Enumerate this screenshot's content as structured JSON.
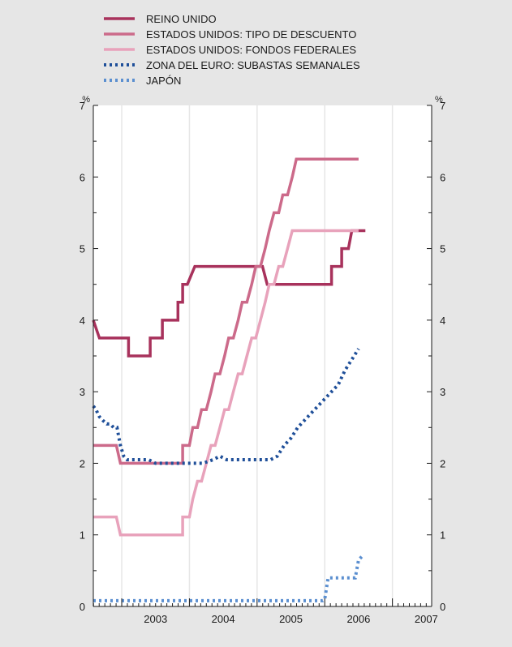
{
  "chart_data": {
    "type": "line",
    "title": "",
    "xlabel": "",
    "ylabel": "",
    "unit_left": "%",
    "unit_right": "%",
    "ylim": [
      0,
      7
    ],
    "xlim": [
      2002.58,
      2007.58
    ],
    "x_tick_labels": [
      "2003",
      "2004",
      "2005",
      "2006",
      "2007"
    ],
    "x_tick_positions": [
      2003,
      2004,
      2005,
      2006,
      2007
    ],
    "y_ticks": [
      "0",
      "1",
      "2",
      "3",
      "4",
      "5",
      "6",
      "7"
    ],
    "grid": "vertical lines at year boundaries",
    "legend_position": "top-left, above plot",
    "series": [
      {
        "name": "REINO UNIDO",
        "color": "#a8325c",
        "style": "solid",
        "points": [
          [
            2002.58,
            4.0
          ],
          [
            2002.67,
            3.75
          ],
          [
            2002.98,
            3.75
          ],
          [
            2003.1,
            3.75
          ],
          [
            2003.1,
            3.5
          ],
          [
            2003.33,
            3.5
          ],
          [
            2003.42,
            3.5
          ],
          [
            2003.42,
            3.75
          ],
          [
            2003.5,
            3.75
          ],
          [
            2003.6,
            3.75
          ],
          [
            2003.6,
            4.0
          ],
          [
            2003.83,
            4.0
          ],
          [
            2003.83,
            4.25
          ],
          [
            2003.9,
            4.25
          ],
          [
            2003.9,
            4.5
          ],
          [
            2003.97,
            4.5
          ],
          [
            2003.97,
            4.5
          ],
          [
            2004.08,
            4.75
          ],
          [
            2005.08,
            4.75
          ],
          [
            2005.08,
            4.75
          ],
          [
            2005.15,
            4.5
          ],
          [
            2005.75,
            4.5
          ],
          [
            2006.05,
            4.5
          ],
          [
            2006.1,
            4.5
          ],
          [
            2006.1,
            4.75
          ],
          [
            2006.25,
            4.75
          ],
          [
            2006.25,
            5.0
          ],
          [
            2006.35,
            5.0
          ],
          [
            2006.35,
            5.0
          ],
          [
            2006.4,
            5.25
          ],
          [
            2006.6,
            5.25
          ]
        ]
      },
      {
        "name": "ESTADOS UNIDOS: TIPO DE DESCUENTO",
        "color": "#cc6a8a",
        "style": "solid",
        "points": [
          [
            2002.58,
            2.25
          ],
          [
            2002.92,
            2.25
          ],
          [
            2002.98,
            2.0
          ],
          [
            2003.35,
            2.0
          ],
          [
            2003.9,
            2.0
          ],
          [
            2003.9,
            2.25
          ],
          [
            2004.0,
            2.25
          ],
          [
            2004.05,
            2.5
          ],
          [
            2004.12,
            2.5
          ],
          [
            2004.18,
            2.75
          ],
          [
            2004.25,
            2.75
          ],
          [
            2004.32,
            3.0
          ],
          [
            2004.38,
            3.25
          ],
          [
            2004.45,
            3.25
          ],
          [
            2004.52,
            3.5
          ],
          [
            2004.58,
            3.75
          ],
          [
            2004.65,
            3.75
          ],
          [
            2004.72,
            4.0
          ],
          [
            2004.78,
            4.25
          ],
          [
            2004.85,
            4.25
          ],
          [
            2004.92,
            4.5
          ],
          [
            2004.98,
            4.75
          ],
          [
            2005.05,
            4.75
          ],
          [
            2005.12,
            5.0
          ],
          [
            2005.18,
            5.25
          ],
          [
            2005.25,
            5.5
          ],
          [
            2005.32,
            5.5
          ],
          [
            2005.38,
            5.75
          ],
          [
            2005.45,
            5.75
          ],
          [
            2005.52,
            6.0
          ],
          [
            2005.58,
            6.25
          ],
          [
            2006.0,
            6.25
          ],
          [
            2006.5,
            6.25
          ]
        ]
      },
      {
        "name": "ESTADOS UNIDOS: FONDOS FEDERALES",
        "color": "#e8a2bb",
        "style": "solid",
        "points": [
          [
            2002.58,
            1.25
          ],
          [
            2002.92,
            1.25
          ],
          [
            2002.98,
            1.0
          ],
          [
            2003.35,
            1.0
          ],
          [
            2003.9,
            1.0
          ],
          [
            2003.9,
            1.25
          ],
          [
            2004.0,
            1.25
          ],
          [
            2004.05,
            1.5
          ],
          [
            2004.12,
            1.75
          ],
          [
            2004.18,
            1.75
          ],
          [
            2004.25,
            2.0
          ],
          [
            2004.32,
            2.25
          ],
          [
            2004.38,
            2.25
          ],
          [
            2004.45,
            2.5
          ],
          [
            2004.52,
            2.75
          ],
          [
            2004.58,
            2.75
          ],
          [
            2004.65,
            3.0
          ],
          [
            2004.72,
            3.25
          ],
          [
            2004.78,
            3.25
          ],
          [
            2004.85,
            3.5
          ],
          [
            2004.92,
            3.75
          ],
          [
            2004.98,
            3.75
          ],
          [
            2005.05,
            4.0
          ],
          [
            2005.12,
            4.25
          ],
          [
            2005.18,
            4.5
          ],
          [
            2005.25,
            4.5
          ],
          [
            2005.32,
            4.75
          ],
          [
            2005.38,
            4.75
          ],
          [
            2005.45,
            5.0
          ],
          [
            2005.52,
            5.25
          ],
          [
            2005.58,
            5.25
          ],
          [
            2006.0,
            5.25
          ],
          [
            2006.5,
            5.25
          ]
        ]
      },
      {
        "name": "ZONA DEL EURO: SUBASTAS SEMANALES",
        "color": "#1f4f99",
        "style": "dotted",
        "points": [
          [
            2002.58,
            2.8
          ],
          [
            2002.62,
            2.75
          ],
          [
            2002.67,
            2.65
          ],
          [
            2002.72,
            2.6
          ],
          [
            2002.78,
            2.55
          ],
          [
            2002.83,
            2.55
          ],
          [
            2002.88,
            2.5
          ],
          [
            2002.93,
            2.5
          ],
          [
            2002.98,
            2.25
          ],
          [
            2003.03,
            2.1
          ],
          [
            2003.08,
            2.05
          ],
          [
            2003.15,
            2.05
          ],
          [
            2003.2,
            2.05
          ],
          [
            2003.3,
            2.05
          ],
          [
            2003.4,
            2.05
          ],
          [
            2003.5,
            2.0
          ],
          [
            2003.6,
            2.0
          ],
          [
            2003.7,
            2.0
          ],
          [
            2003.8,
            2.0
          ],
          [
            2003.9,
            2.0
          ],
          [
            2004.0,
            2.0
          ],
          [
            2004.1,
            2.0
          ],
          [
            2004.2,
            2.0
          ],
          [
            2004.35,
            2.05
          ],
          [
            2004.45,
            2.1
          ],
          [
            2004.55,
            2.05
          ],
          [
            2004.7,
            2.05
          ],
          [
            2004.85,
            2.05
          ],
          [
            2005.0,
            2.05
          ],
          [
            2005.1,
            2.05
          ],
          [
            2005.2,
            2.05
          ],
          [
            2005.3,
            2.1
          ],
          [
            2005.4,
            2.25
          ],
          [
            2005.5,
            2.35
          ],
          [
            2005.6,
            2.5
          ],
          [
            2005.7,
            2.6
          ],
          [
            2005.8,
            2.7
          ],
          [
            2005.9,
            2.8
          ],
          [
            2006.0,
            2.9
          ],
          [
            2006.1,
            3.0
          ],
          [
            2006.2,
            3.1
          ],
          [
            2006.3,
            3.3
          ],
          [
            2006.4,
            3.45
          ],
          [
            2006.5,
            3.6
          ]
        ]
      },
      {
        "name": "JAPÓN",
        "color": "#5b8fd0",
        "style": "dotted",
        "points": [
          [
            2002.58,
            0.08
          ],
          [
            2003.0,
            0.08
          ],
          [
            2004.0,
            0.08
          ],
          [
            2005.0,
            0.08
          ],
          [
            2005.97,
            0.08
          ],
          [
            2006.0,
            0.1
          ],
          [
            2006.05,
            0.4
          ],
          [
            2006.1,
            0.4
          ],
          [
            2006.3,
            0.4
          ],
          [
            2006.45,
            0.4
          ],
          [
            2006.5,
            0.65
          ],
          [
            2006.55,
            0.7
          ]
        ]
      }
    ]
  }
}
